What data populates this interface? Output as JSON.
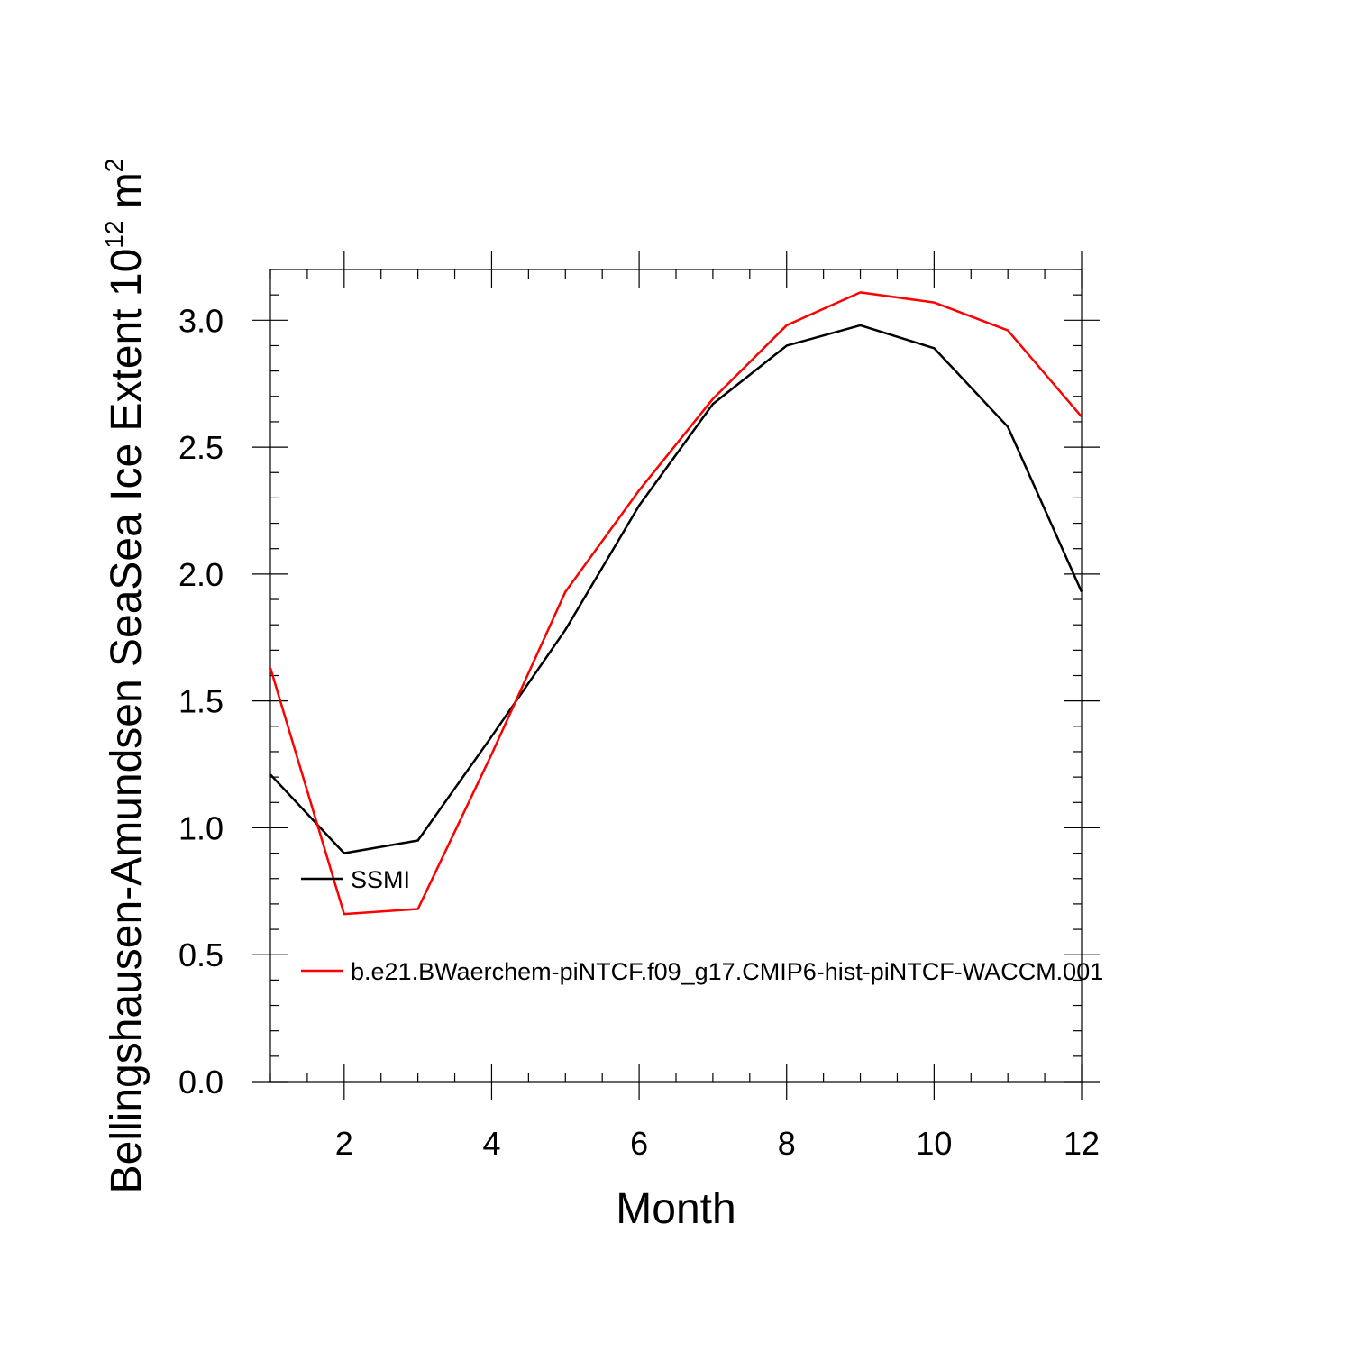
{
  "chart_data": {
    "type": "line",
    "title": "",
    "xlabel": "Month",
    "ylabel_main": "Bellingshausen-Amundsen SeaSea Ice Extent 10",
    "ylabel_exponent": "12",
    "ylabel_unit": " m",
    "ylabel_unit_exponent": "2",
    "xlim": [
      1,
      12
    ],
    "ylim": [
      0,
      3.2
    ],
    "x_ticks": [
      2,
      4,
      6,
      8,
      10,
      12
    ],
    "x_tick_labels": [
      "2",
      "4",
      "6",
      "8",
      "10",
      "12"
    ],
    "y_ticks": [
      0,
      0.5,
      1.0,
      1.5,
      2.0,
      2.5,
      3.0
    ],
    "y_tick_labels": [
      "0.0",
      "0.5",
      "1.0",
      "1.5",
      "2.0",
      "2.5",
      "3.0"
    ],
    "grid": false,
    "legend_position": "lower-left inside",
    "x": [
      1,
      2,
      3,
      4,
      5,
      6,
      7,
      8,
      9,
      10,
      11,
      12
    ],
    "series": [
      {
        "name": "SSMI",
        "color": "#000000",
        "values": [
          1.21,
          0.9,
          0.95,
          1.36,
          1.78,
          2.27,
          2.67,
          2.9,
          2.98,
          2.89,
          2.58,
          1.93
        ]
      },
      {
        "name": "b.e21.BWaerchem-piNTCF.f09_g17.CMIP6-hist-piNTCF-WACCM.001",
        "color": "#ff0000",
        "values": [
          1.63,
          0.66,
          0.68,
          1.29,
          1.93,
          2.33,
          2.69,
          2.98,
          3.11,
          3.07,
          2.96,
          2.62
        ]
      }
    ]
  }
}
